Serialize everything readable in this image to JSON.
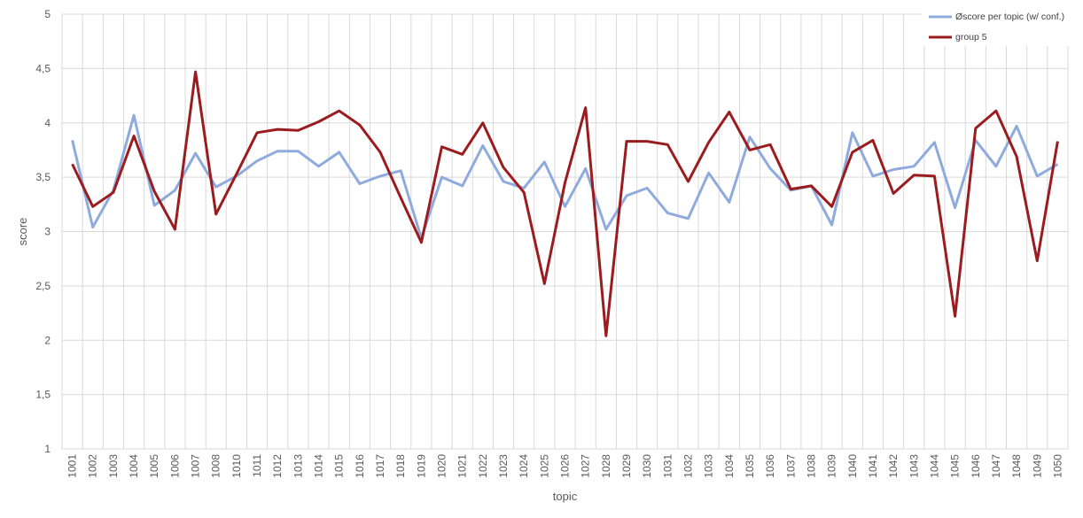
{
  "chart_data": {
    "type": "line",
    "title": "",
    "xlabel": "topic",
    "ylabel": "score",
    "ylim": [
      1,
      5
    ],
    "y_ticks": [
      "1",
      "1,5",
      "2",
      "2,5",
      "3",
      "3,5",
      "4",
      "4,5",
      "5"
    ],
    "y_tick_values": [
      1,
      1.5,
      2,
      2.5,
      3,
      3.5,
      4,
      4.5,
      5
    ],
    "grid": true,
    "legend_position": "top-right",
    "categories": [
      "1001",
      "1002",
      "1003",
      "1004",
      "1005",
      "1006",
      "1007",
      "1008",
      "1010",
      "1011",
      "1012",
      "1013",
      "1014",
      "1015",
      "1016",
      "1017",
      "1018",
      "1019",
      "1020",
      "1021",
      "1022",
      "1023",
      "1024",
      "1025",
      "1026",
      "1027",
      "1028",
      "1029",
      "1030",
      "1031",
      "1032",
      "1033",
      "1034",
      "1035",
      "1036",
      "1037",
      "1038",
      "1039",
      "1040",
      "1041",
      "1042",
      "1043",
      "1044",
      "1045",
      "1046",
      "1047",
      "1048",
      "1049",
      "1050"
    ],
    "series": [
      {
        "name": "Øscore per topic (w/ conf.)",
        "color": "#8faadc",
        "values": [
          3.84,
          3.04,
          3.38,
          4.07,
          3.24,
          3.38,
          3.72,
          3.41,
          3.51,
          3.65,
          3.74,
          3.74,
          3.6,
          3.73,
          3.44,
          3.51,
          3.56,
          2.94,
          3.5,
          3.42,
          3.79,
          3.46,
          3.4,
          3.64,
          3.23,
          3.58,
          3.02,
          3.33,
          3.4,
          3.17,
          3.12,
          3.54,
          3.27,
          3.87,
          3.58,
          3.38,
          3.42,
          3.06,
          3.91,
          3.51,
          3.57,
          3.6,
          3.82,
          3.22,
          3.84,
          3.6,
          3.97,
          3.51,
          3.62
        ]
      },
      {
        "name": "group 5",
        "color": "#9b1c1f",
        "values": [
          3.62,
          3.23,
          3.36,
          3.88,
          3.37,
          3.02,
          4.47,
          3.16,
          3.53,
          3.91,
          3.94,
          3.93,
          4.01,
          4.11,
          3.98,
          3.73,
          3.31,
          2.9,
          3.78,
          3.71,
          4.0,
          3.59,
          3.36,
          2.52,
          3.45,
          4.14,
          2.04,
          3.83,
          3.83,
          3.8,
          3.46,
          3.82,
          4.1,
          3.75,
          3.8,
          3.39,
          3.42,
          3.23,
          3.73,
          3.84,
          3.35,
          3.52,
          3.51,
          2.22,
          3.95,
          4.11,
          3.69,
          2.73,
          3.83
        ]
      }
    ]
  }
}
